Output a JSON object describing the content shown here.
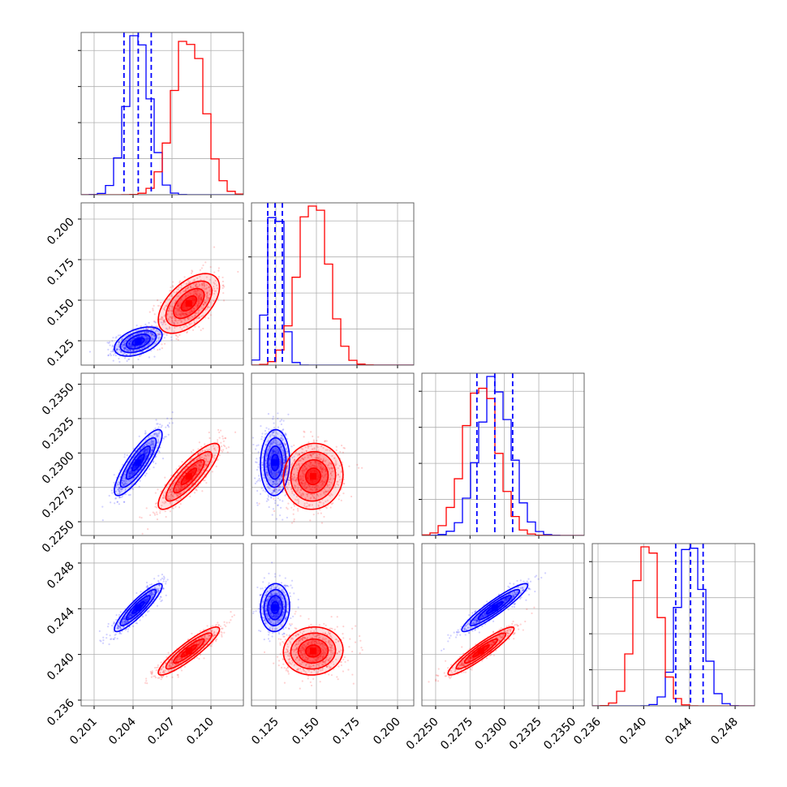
{
  "chart_data": {
    "type": "corner",
    "title": "",
    "parameters": [
      {
        "ticks": [
          0.201,
          0.204,
          0.207,
          0.21
        ],
        "tick_labels": [
          "0.201",
          "0.204",
          "0.207",
          "0.210"
        ],
        "range": [
          0.2,
          0.2125
        ]
      },
      {
        "ticks": [
          0.125,
          0.15,
          0.175,
          0.2
        ],
        "tick_labels": [
          "0.125",
          "0.150",
          "0.175",
          "0.200"
        ],
        "range": [
          0.11,
          0.21
        ]
      },
      {
        "ticks": [
          0.225,
          0.2275,
          0.23,
          0.2325,
          0.235
        ],
        "tick_labels": [
          "0.2250",
          "0.2275",
          "0.2300",
          "0.2325",
          "0.2350"
        ],
        "range": [
          0.224,
          0.2358
        ]
      },
      {
        "ticks": [
          0.236,
          0.24,
          0.244,
          0.248
        ],
        "tick_labels": [
          "0.236",
          "0.240",
          "0.244",
          "0.248"
        ],
        "range": [
          0.2355,
          0.2497
        ]
      }
    ],
    "series": [
      {
        "color": "#0000ff",
        "means": [
          0.2044,
          0.1245,
          0.2293,
          0.2441
        ],
        "sigmas": [
          0.00092,
          0.0045,
          0.0012,
          0.00105
        ],
        "correlations": {
          "1-0": 0.45,
          "2-0": 0.85,
          "2-1": 0.05,
          "3-0": 0.9,
          "3-1": 0.05,
          "3-2": 0.93
        },
        "quantile_lines": [
          [
            0.2033,
            0.2044,
            0.2054
          ],
          [
            0.12,
            0.1245,
            0.129
          ],
          [
            0.228,
            0.2293,
            0.2306
          ],
          [
            0.2428,
            0.2441,
            0.2452
          ]
        ]
      },
      {
        "color": "#ff0000",
        "means": [
          0.2083,
          0.148,
          0.2283,
          0.2403
        ],
        "sigmas": [
          0.00118,
          0.0092,
          0.0012,
          0.00105
        ],
        "correlations": {
          "1-0": 0.55,
          "2-0": 0.85,
          "2-1": 0.05,
          "3-0": 0.9,
          "3-1": 0.05,
          "3-2": 0.93
        }
      }
    ],
    "contour_levels_sigma": [
      0.5,
      1.0,
      1.5,
      2.0
    ],
    "grid": true
  }
}
